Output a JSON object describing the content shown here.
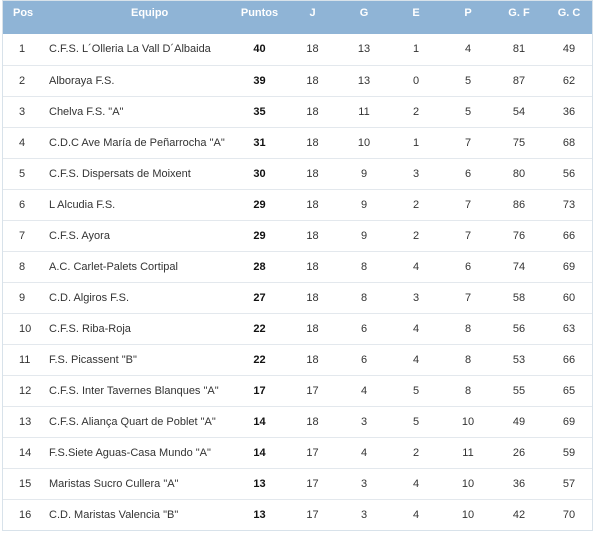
{
  "table": {
    "headers": {
      "pos": "Pos",
      "equipo": "Equipo",
      "puntos": "Puntos",
      "j": "J",
      "g": "G",
      "e": "E",
      "p": "P",
      "gf": "G. F",
      "gc": "G. C"
    },
    "rows": [
      {
        "pos": "1",
        "team": "C.F.S. L´Olleria La Vall D´Albaida",
        "pts": "40",
        "j": "18",
        "g": "13",
        "e": "1",
        "p": "4",
        "gf": "81",
        "gc": "49"
      },
      {
        "pos": "2",
        "team": "Alboraya F.S.",
        "pts": "39",
        "j": "18",
        "g": "13",
        "e": "0",
        "p": "5",
        "gf": "87",
        "gc": "62"
      },
      {
        "pos": "3",
        "team": "Chelva F.S. \"A\"",
        "pts": "35",
        "j": "18",
        "g": "11",
        "e": "2",
        "p": "5",
        "gf": "54",
        "gc": "36"
      },
      {
        "pos": "4",
        "team": "C.D.C Ave María de Peñarrocha \"A\"",
        "pts": "31",
        "j": "18",
        "g": "10",
        "e": "1",
        "p": "7",
        "gf": "75",
        "gc": "68"
      },
      {
        "pos": "5",
        "team": "C.F.S. Dispersats de Moixent",
        "pts": "30",
        "j": "18",
        "g": "9",
        "e": "3",
        "p": "6",
        "gf": "80",
        "gc": "56"
      },
      {
        "pos": "6",
        "team": "L Alcudia F.S.",
        "pts": "29",
        "j": "18",
        "g": "9",
        "e": "2",
        "p": "7",
        "gf": "86",
        "gc": "73"
      },
      {
        "pos": "7",
        "team": "C.F.S. Ayora",
        "pts": "29",
        "j": "18",
        "g": "9",
        "e": "2",
        "p": "7",
        "gf": "76",
        "gc": "66"
      },
      {
        "pos": "8",
        "team": "A.C. Carlet-Palets Cortipal",
        "pts": "28",
        "j": "18",
        "g": "8",
        "e": "4",
        "p": "6",
        "gf": "74",
        "gc": "69"
      },
      {
        "pos": "9",
        "team": "C.D. Algiros F.S.",
        "pts": "27",
        "j": "18",
        "g": "8",
        "e": "3",
        "p": "7",
        "gf": "58",
        "gc": "60"
      },
      {
        "pos": "10",
        "team": "C.F.S. Riba-Roja",
        "pts": "22",
        "j": "18",
        "g": "6",
        "e": "4",
        "p": "8",
        "gf": "56",
        "gc": "63"
      },
      {
        "pos": "11",
        "team": "F.S. Picassent \"B\"",
        "pts": "22",
        "j": "18",
        "g": "6",
        "e": "4",
        "p": "8",
        "gf": "53",
        "gc": "66"
      },
      {
        "pos": "12",
        "team": "C.F.S. Inter Tavernes Blanques \"A\"",
        "pts": "17",
        "j": "17",
        "g": "4",
        "e": "5",
        "p": "8",
        "gf": "55",
        "gc": "65"
      },
      {
        "pos": "13",
        "team": "C.F.S. Aliança Quart de Poblet \"A\"",
        "pts": "14",
        "j": "18",
        "g": "3",
        "e": "5",
        "p": "10",
        "gf": "49",
        "gc": "69"
      },
      {
        "pos": "14",
        "team": "F.S.Siete Aguas-Casa Mundo \"A\"",
        "pts": "14",
        "j": "17",
        "g": "4",
        "e": "2",
        "p": "11",
        "gf": "26",
        "gc": "59"
      },
      {
        "pos": "15",
        "team": "Maristas Sucro Cullera \"A\"",
        "pts": "13",
        "j": "17",
        "g": "3",
        "e": "4",
        "p": "10",
        "gf": "36",
        "gc": "57"
      },
      {
        "pos": "16",
        "team": "C.D. Maristas Valencia \"B\"",
        "pts": "13",
        "j": "17",
        "g": "3",
        "e": "4",
        "p": "10",
        "gf": "42",
        "gc": "70"
      }
    ]
  },
  "colors": {
    "header_bg": "#8fb4d6",
    "header_text": "#ffffff",
    "row_border": "#e3e8ed",
    "text": "#333333"
  }
}
